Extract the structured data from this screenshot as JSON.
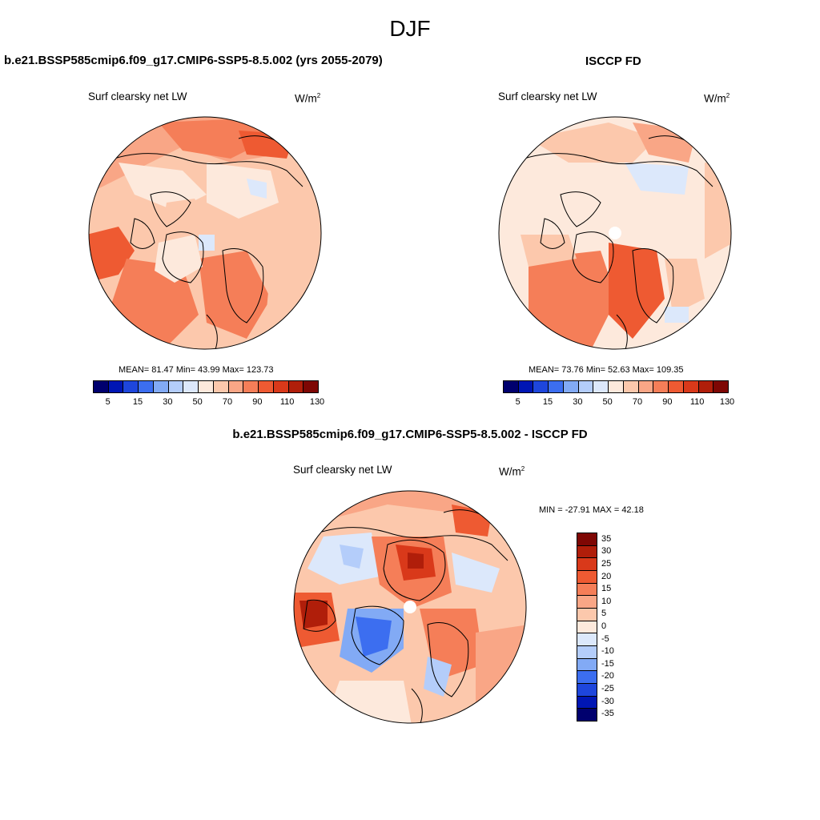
{
  "season": "DJF",
  "panels": {
    "model": {
      "title": "b.e21.BSSP585cmip6.f09_g17.CMIP6-SSP5-8.5.002 (yrs 2055-2079)",
      "label": "Surf clearsky net LW",
      "units_base": "W/m",
      "units_exp": "2",
      "stats": "MEAN=  81.47  Min=  43.99  Max= 123.73",
      "colorbar_ticks": [
        "5",
        "15",
        "30",
        "50",
        "70",
        "90",
        "110",
        "130"
      ]
    },
    "obs": {
      "title": "ISCCP FD",
      "label": "Surf clearsky net LW",
      "units_base": "W/m",
      "units_exp": "2",
      "stats": "MEAN=  73.76  Min=  52.63  Max= 109.35",
      "colorbar_ticks": [
        "5",
        "15",
        "30",
        "50",
        "70",
        "90",
        "110",
        "130"
      ]
    },
    "diff": {
      "title": "b.e21.BSSP585cmip6.f09_g17.CMIP6-SSP5-8.5.002 - ISCCP FD",
      "label": "Surf clearsky net LW",
      "units_base": "W/m",
      "units_exp": "2",
      "stats": "MIN = -27.91 MAX =  42.18",
      "colorbar_ticks": [
        "35",
        "30",
        "25",
        "20",
        "15",
        "10",
        "5",
        "0",
        "-5",
        "-10",
        "-15",
        "-20",
        "-25",
        "-30",
        "-35"
      ]
    }
  },
  "colors": {
    "seq": [
      "#00006e",
      "#0016b4",
      "#1e46dc",
      "#3c6ef0",
      "#82aaf5",
      "#b4cdfa",
      "#dce8fb",
      "#fde9dc",
      "#fcc8ac",
      "#f9a686",
      "#f57e58",
      "#ee5a32",
      "#d9391a",
      "#b01e0a",
      "#7e0704"
    ],
    "div": [
      "#7e0704",
      "#b01e0a",
      "#d9391a",
      "#ee5a32",
      "#f57e58",
      "#f9a686",
      "#fcc8ac",
      "#fde9dc",
      "#dce8fb",
      "#b4cdfa",
      "#82aaf5",
      "#3c6ef0",
      "#1e46dc",
      "#0016b4",
      "#00006e"
    ],
    "land_line": "#000000"
  }
}
